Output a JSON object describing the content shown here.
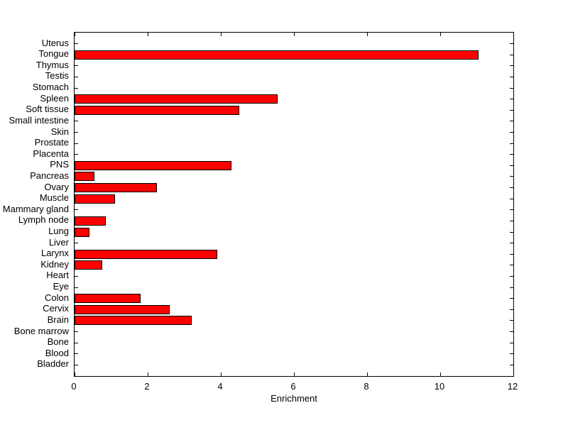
{
  "chart_data": {
    "type": "bar",
    "orientation": "horizontal",
    "title": "",
    "xlabel": "Enrichment",
    "ylabel": "",
    "xlim": [
      0,
      12
    ],
    "xticks": [
      0,
      2,
      4,
      6,
      8,
      10,
      12
    ],
    "grid": false,
    "legend": null,
    "bar_color": "#FF0000",
    "bar_edge_color": "#000000",
    "axis_color": "#000000",
    "background_color": "#FFFFFF",
    "categories": [
      "Uterus",
      "Tongue",
      "Thymus",
      "Testis",
      "Stomach",
      "Spleen",
      "Soft tissue",
      "Small intestine",
      "Skin",
      "Prostate",
      "Placenta",
      "PNS",
      "Pancreas",
      "Ovary",
      "Muscle",
      "Mammary gland",
      "Lymph node",
      "Lung",
      "Liver",
      "Larynx",
      "Kidney",
      "Heart",
      "Eye",
      "Colon",
      "Cervix",
      "Brain",
      "Bone marrow",
      "Bone",
      "Blood",
      "Bladder"
    ],
    "values": [
      0,
      11.05,
      0,
      0,
      0,
      5.55,
      4.5,
      0,
      0,
      0,
      0,
      4.3,
      0.55,
      2.25,
      1.1,
      0,
      0.85,
      0.4,
      0,
      3.9,
      0.75,
      0,
      0,
      1.8,
      2.6,
      3.2,
      0,
      0,
      0,
      0
    ]
  }
}
